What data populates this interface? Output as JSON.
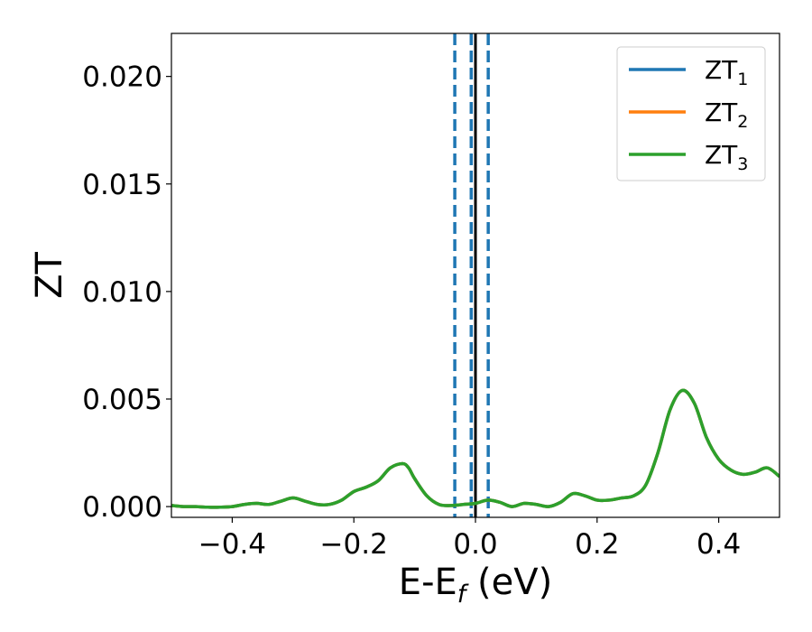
{
  "chart_data": {
    "type": "line",
    "xlabel": "E-E",
    "xlabel_sub": "f",
    "xlabel_unit": " (eV)",
    "ylabel": "ZT",
    "xlim": [
      -0.5,
      0.5
    ],
    "ylim": [
      -0.0005,
      0.022
    ],
    "xticks": [
      -0.4,
      -0.2,
      0.0,
      0.2,
      0.4
    ],
    "xtick_labels": [
      "−0.4",
      "−0.2",
      "0.0",
      "0.2",
      "0.4"
    ],
    "yticks": [
      0.0,
      0.005,
      0.01,
      0.015,
      0.02
    ],
    "ytick_labels": [
      "0.000",
      "0.005",
      "0.010",
      "0.015",
      "0.020"
    ],
    "grid": false,
    "legend_position": "upper-right",
    "colors": {
      "ZT1": "#1f77b4",
      "ZT2": "#ff7f0e",
      "ZT3": "#2ca02c",
      "fermi_line": "#000000",
      "dashed_lines": "#1f77b4"
    },
    "legend": [
      {
        "base": "ZT",
        "sub": "1",
        "color": "#1f77b4"
      },
      {
        "base": "ZT",
        "sub": "2",
        "color": "#ff7f0e"
      },
      {
        "base": "ZT",
        "sub": "3",
        "color": "#2ca02c"
      }
    ],
    "vertical_lines": [
      {
        "x": 0.0,
        "style": "solid",
        "color": "#000000"
      },
      {
        "x": -0.034,
        "style": "dashed",
        "color": "#1f77b4"
      },
      {
        "x": -0.007,
        "style": "dashed",
        "color": "#1f77b4"
      },
      {
        "x": 0.021,
        "style": "dashed",
        "color": "#1f77b4"
      }
    ],
    "x": [
      -0.5,
      -0.48,
      -0.46,
      -0.44,
      -0.42,
      -0.4,
      -0.38,
      -0.36,
      -0.34,
      -0.32,
      -0.3,
      -0.28,
      -0.26,
      -0.24,
      -0.22,
      -0.2,
      -0.18,
      -0.16,
      -0.14,
      -0.12,
      -0.11,
      -0.1,
      -0.08,
      -0.06,
      -0.04,
      -0.02,
      0.0,
      0.02,
      0.04,
      0.06,
      0.08,
      0.1,
      0.12,
      0.14,
      0.16,
      0.18,
      0.2,
      0.22,
      0.24,
      0.26,
      0.28,
      0.3,
      0.32,
      0.34,
      0.36,
      0.38,
      0.4,
      0.42,
      0.44,
      0.46,
      0.48,
      0.5
    ],
    "series": [
      {
        "name": "ZT₁",
        "color": "#1f77b4",
        "values": [
          5e-05,
          0.0,
          0.0,
          -3e-05,
          -3e-05,
          0.0,
          0.0001,
          0.00015,
          0.0001,
          0.00025,
          0.0004,
          0.00025,
          0.0001,
          0.0001,
          0.0003,
          0.0007,
          0.0009,
          0.0012,
          0.0018,
          0.002,
          0.0018,
          0.0013,
          0.0005,
          0.0001,
          5e-05,
          0.0001,
          0.00015,
          0.0003,
          0.0002,
          0.0,
          0.00015,
          0.0001,
          0.0,
          0.0002,
          0.0006,
          0.0005,
          0.0003,
          0.0003,
          0.0004,
          0.0005,
          0.001,
          0.0025,
          0.0045,
          0.0054,
          0.0048,
          0.0032,
          0.0022,
          0.0017,
          0.0015,
          0.0016,
          0.0018,
          0.0014
        ]
      },
      {
        "name": "ZT₂",
        "color": "#ff7f0e",
        "values": [
          5e-05,
          0.0,
          0.0,
          -3e-05,
          -3e-05,
          0.0,
          0.0001,
          0.00015,
          0.0001,
          0.00025,
          0.0004,
          0.00025,
          0.0001,
          0.0001,
          0.0003,
          0.0007,
          0.0009,
          0.0012,
          0.0018,
          0.002,
          0.0018,
          0.0013,
          0.0005,
          0.0001,
          5e-05,
          0.0001,
          0.00015,
          0.0003,
          0.0002,
          0.0,
          0.00015,
          0.0001,
          0.0,
          0.0002,
          0.0006,
          0.0005,
          0.0003,
          0.0003,
          0.0004,
          0.0005,
          0.001,
          0.0025,
          0.0045,
          0.0054,
          0.0048,
          0.0032,
          0.0022,
          0.0017,
          0.0015,
          0.0016,
          0.0018,
          0.0014
        ]
      },
      {
        "name": "ZT₃",
        "color": "#2ca02c",
        "values": [
          5e-05,
          0.0,
          0.0,
          -3e-05,
          -3e-05,
          0.0,
          0.0001,
          0.00015,
          0.0001,
          0.00025,
          0.0004,
          0.00025,
          0.0001,
          0.0001,
          0.0003,
          0.0007,
          0.0009,
          0.0012,
          0.0018,
          0.002,
          0.0018,
          0.0013,
          0.0005,
          0.0001,
          5e-05,
          0.0001,
          0.00015,
          0.0003,
          0.0002,
          0.0,
          0.00015,
          0.0001,
          0.0,
          0.0002,
          0.0006,
          0.0005,
          0.0003,
          0.0003,
          0.0004,
          0.0005,
          0.001,
          0.0025,
          0.0045,
          0.0054,
          0.0048,
          0.0032,
          0.0022,
          0.0017,
          0.0015,
          0.0016,
          0.0018,
          0.0014
        ]
      }
    ]
  }
}
